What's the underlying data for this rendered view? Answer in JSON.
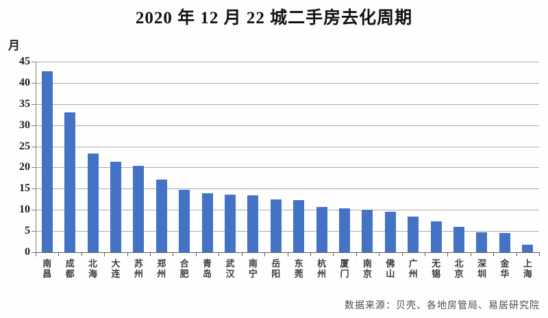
{
  "page": {
    "background": "#fefefe"
  },
  "chart_data": {
    "type": "bar",
    "title": "2020 年 12 月 22 城二手房去化周期",
    "unit_label": "月",
    "categories": [
      "南昌",
      "成都",
      "北海",
      "大连",
      "苏州",
      "郑州",
      "合肥",
      "青岛",
      "武汉",
      "南宁",
      "岳阳",
      "东莞",
      "杭州",
      "厦门",
      "南京",
      "佛山",
      "广州",
      "无锡",
      "北京",
      "深圳",
      "金华",
      "上海"
    ],
    "values": [
      42.7,
      33.1,
      23.3,
      21.4,
      20.4,
      17.2,
      14.7,
      13.9,
      13.6,
      13.4,
      12.5,
      12.3,
      10.7,
      10.3,
      10.0,
      9.5,
      8.4,
      7.3,
      6.0,
      4.7,
      4.6,
      1.7
    ],
    "xlabel": "",
    "ylabel": "月",
    "ylim": [
      0,
      45
    ],
    "yticks": [
      0,
      5,
      10,
      15,
      20,
      25,
      30,
      35,
      40,
      45
    ],
    "grid": true,
    "legend": false,
    "bar_color": "#4472C4",
    "gridline_color": "#a8a8a8",
    "axis_color": "#595959",
    "source": "数据来源：贝壳、各地房管局、易居研究院"
  }
}
